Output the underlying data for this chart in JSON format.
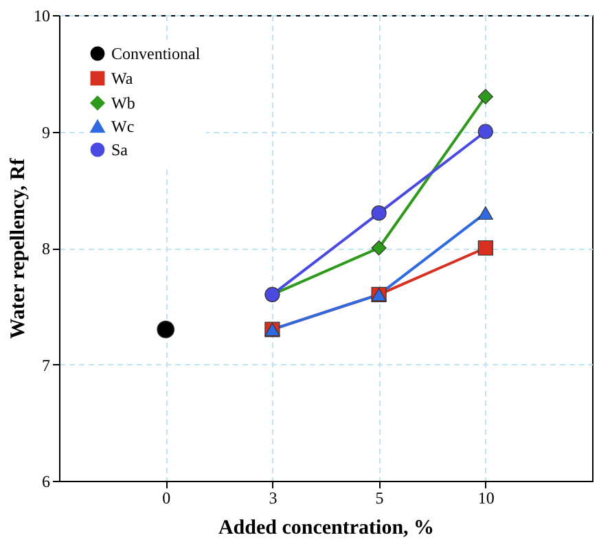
{
  "chart_data": {
    "type": "line",
    "xlabel": "Added concentration, %",
    "ylabel": "Water repellency, Rf",
    "categories": [
      "0",
      "3",
      "5",
      "10"
    ],
    "series": [
      {
        "name": "Conventional",
        "type": "scatter",
        "marker": "circle",
        "color": "#000000",
        "values": [
          7.3,
          null,
          null,
          null
        ]
      },
      {
        "name": "Wa",
        "marker": "square",
        "color": "#d83020",
        "values": [
          null,
          7.3,
          7.6,
          8.0
        ]
      },
      {
        "name": "Wb",
        "marker": "diamond",
        "color": "#2e9a1c",
        "values": [
          null,
          7.6,
          8.0,
          9.3
        ]
      },
      {
        "name": "Wc",
        "marker": "triangle",
        "color": "#2f6ae0",
        "values": [
          null,
          7.3,
          7.6,
          8.3
        ]
      },
      {
        "name": "Sa",
        "marker": "circle",
        "color": "#4a4ae0",
        "values": [
          null,
          7.6,
          8.3,
          9.0
        ]
      }
    ],
    "ylim": [
      6,
      10
    ],
    "yticks": [
      6,
      7,
      8,
      9,
      10
    ],
    "grid": true,
    "legend": "top left"
  }
}
